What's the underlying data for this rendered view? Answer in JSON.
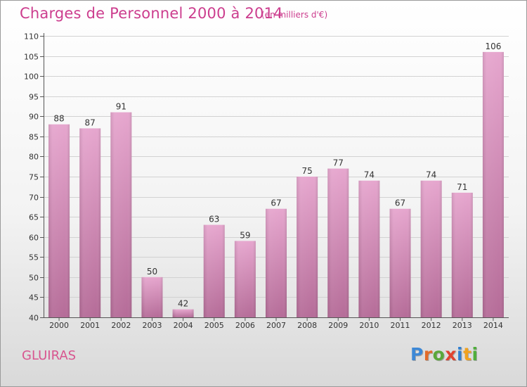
{
  "header": {
    "title": "Charges de Personnel 2000 à 2014",
    "subtitle": "(en milliers d'€)"
  },
  "footer": {
    "commune": "GLUIRAS",
    "logo_text": "Proxiti",
    "logo_colors": [
      "#3d88d6",
      "#e26b2a",
      "#5aa83a",
      "#e0432f",
      "#2f7fd0",
      "#f0a21f",
      "#4fae3b"
    ]
  },
  "colors": {
    "bar_top": "#e6a6ce",
    "bar_bottom": "#b56c98",
    "title": "#cc3d8e",
    "grid": "#d2d2d2"
  },
  "chart_data": {
    "type": "bar",
    "categories": [
      "2000",
      "2001",
      "2002",
      "2003",
      "2004",
      "2005",
      "2006",
      "2007",
      "2008",
      "2009",
      "2010",
      "2011",
      "2012",
      "2013",
      "2014"
    ],
    "values": [
      88,
      87,
      91,
      50,
      42,
      63,
      59,
      67,
      75,
      77,
      74,
      67,
      74,
      71,
      106
    ],
    "title": "Charges de Personnel 2000 à 2014",
    "subtitle": "(en milliers d'€)",
    "xlabel": "",
    "ylabel": "",
    "ylim": [
      40,
      110
    ],
    "yticks": [
      40,
      45,
      50,
      55,
      60,
      65,
      70,
      75,
      80,
      85,
      90,
      95,
      100,
      105,
      110
    ],
    "grid": true,
    "data_labels": true
  }
}
